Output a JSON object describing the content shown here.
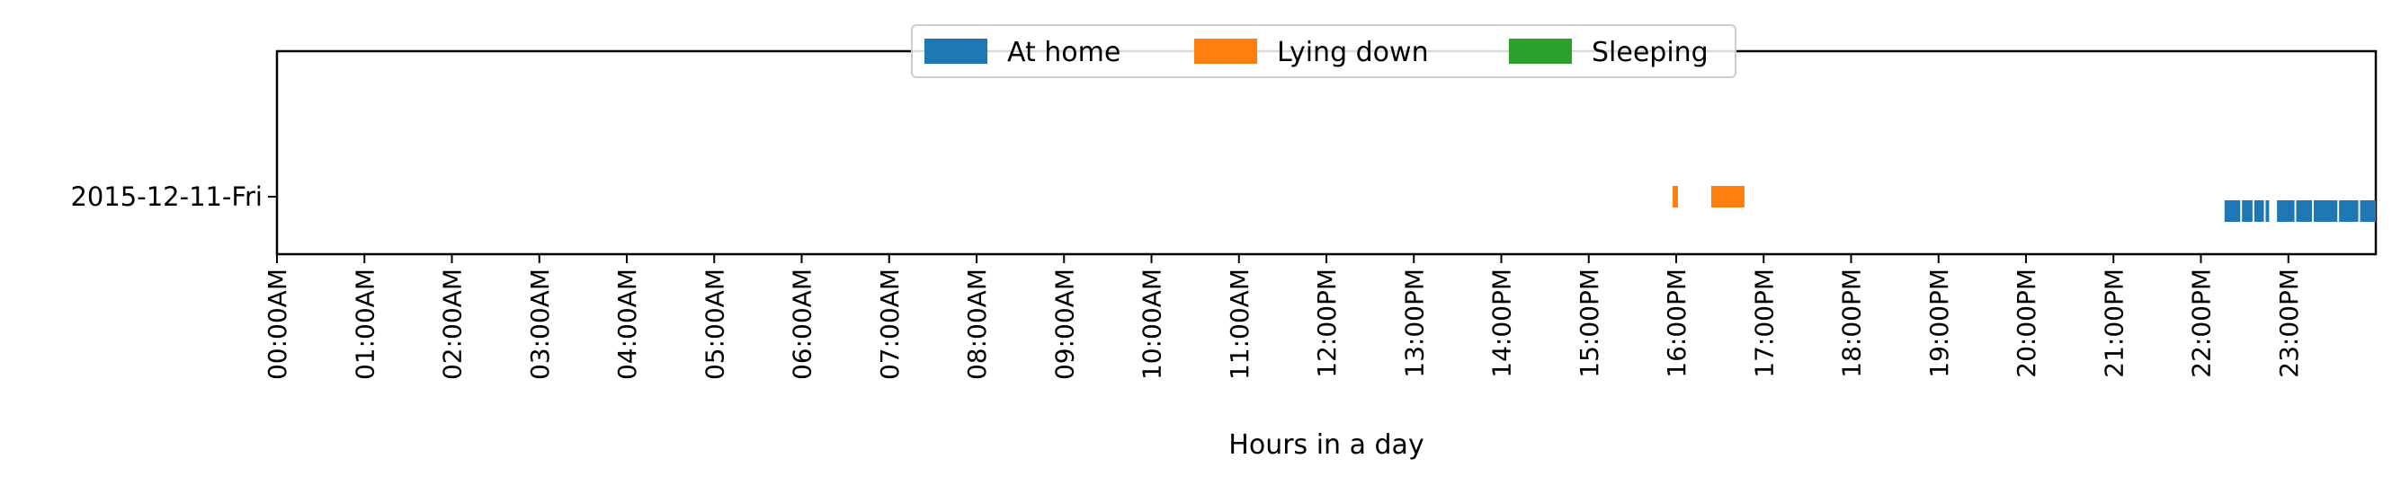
{
  "chart_data": {
    "type": "timeline",
    "title": "",
    "xlabel": "Hours in a day",
    "ylabel": "",
    "xlim": [
      0,
      24
    ],
    "x_ticks": [
      {
        "value": 0,
        "label": "00:00AM"
      },
      {
        "value": 1,
        "label": "01:00AM"
      },
      {
        "value": 2,
        "label": "02:00AM"
      },
      {
        "value": 3,
        "label": "03:00AM"
      },
      {
        "value": 4,
        "label": "04:00AM"
      },
      {
        "value": 5,
        "label": "05:00AM"
      },
      {
        "value": 6,
        "label": "06:00AM"
      },
      {
        "value": 7,
        "label": "07:00AM"
      },
      {
        "value": 8,
        "label": "08:00AM"
      },
      {
        "value": 9,
        "label": "09:00AM"
      },
      {
        "value": 10,
        "label": "10:00AM"
      },
      {
        "value": 11,
        "label": "11:00AM"
      },
      {
        "value": 12,
        "label": "12:00PM"
      },
      {
        "value": 13,
        "label": "13:00PM"
      },
      {
        "value": 14,
        "label": "14:00PM"
      },
      {
        "value": 15,
        "label": "15:00PM"
      },
      {
        "value": 16,
        "label": "16:00PM"
      },
      {
        "value": 17,
        "label": "17:00PM"
      },
      {
        "value": 18,
        "label": "18:00PM"
      },
      {
        "value": 19,
        "label": "19:00PM"
      },
      {
        "value": 20,
        "label": "20:00PM"
      },
      {
        "value": 21,
        "label": "21:00PM"
      },
      {
        "value": 22,
        "label": "22:00PM"
      },
      {
        "value": 23,
        "label": "23:00PM"
      }
    ],
    "rows": [
      "2015-12-11-Fri"
    ],
    "grid": false,
    "legend": {
      "placement": "upper-center",
      "entries": [
        "At home",
        "Lying down",
        "Sleeping"
      ]
    },
    "series": [
      {
        "name": "At home",
        "color": "#1f77b4",
        "lane": "low",
        "intervals": [
          [
            22.27,
            22.45
          ],
          [
            22.47,
            22.59
          ],
          [
            22.61,
            22.72
          ],
          [
            22.74,
            22.78
          ],
          [
            22.87,
            23.07
          ],
          [
            23.09,
            23.27
          ],
          [
            23.29,
            23.56
          ],
          [
            23.58,
            23.8
          ],
          [
            23.82,
            24.0
          ]
        ]
      },
      {
        "name": "Lying down",
        "color": "#ff7f0e",
        "lane": "mid",
        "intervals": [
          [
            15.96,
            16.02
          ],
          [
            16.4,
            16.78
          ]
        ]
      },
      {
        "name": "Sleeping",
        "color": "#2ca02c",
        "lane": "high",
        "intervals": []
      }
    ]
  }
}
